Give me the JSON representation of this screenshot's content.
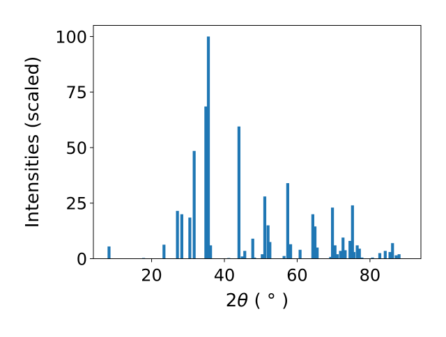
{
  "chart_data": {
    "type": "bar",
    "title": "",
    "xlabel_main": "2",
    "xlabel_theta": "θ",
    "xlabel_unit": "( ° )",
    "ylabel": "Intensities (scaled)",
    "xlim": [
      4.0,
      94.0
    ],
    "ylim": [
      0,
      105
    ],
    "xticks": [
      20,
      40,
      60,
      80
    ],
    "yticks": [
      0,
      25,
      50,
      75,
      100
    ],
    "color": "#1f77b4",
    "x": [
      8.3,
      17.8,
      23.4,
      27.1,
      28.3,
      30.5,
      31.7,
      34.9,
      35.6,
      36.2,
      41.2,
      44.0,
      44.9,
      45.6,
      47.8,
      48.3,
      50.4,
      51.1,
      52.0,
      52.5,
      56.4,
      57.4,
      58.2,
      60.8,
      64.3,
      64.9,
      65.5,
      69.2,
      69.7,
      70.4,
      71.0,
      71.9,
      72.6,
      73.2,
      74.5,
      75.2,
      75.6,
      76.5,
      77.1,
      77.8,
      80.7,
      82.7,
      84.2,
      85.5,
      86.2,
      87.2,
      88.0
    ],
    "values": [
      5.5,
      0.3,
      6.3,
      21.5,
      20.0,
      18.5,
      48.5,
      68.5,
      100.0,
      6.0,
      0.3,
      59.5,
      1.0,
      3.5,
      9.0,
      0.5,
      2.0,
      28.0,
      15.0,
      7.5,
      1.2,
      34.0,
      6.5,
      4.0,
      20.0,
      14.5,
      5.0,
      0.8,
      23.0,
      6.0,
      2.0,
      3.5,
      9.5,
      3.8,
      8.0,
      24.0,
      3.0,
      6.0,
      4.5,
      0.5,
      0.5,
      2.5,
      3.5,
      3.0,
      7.0,
      1.5,
      2.0
    ]
  }
}
